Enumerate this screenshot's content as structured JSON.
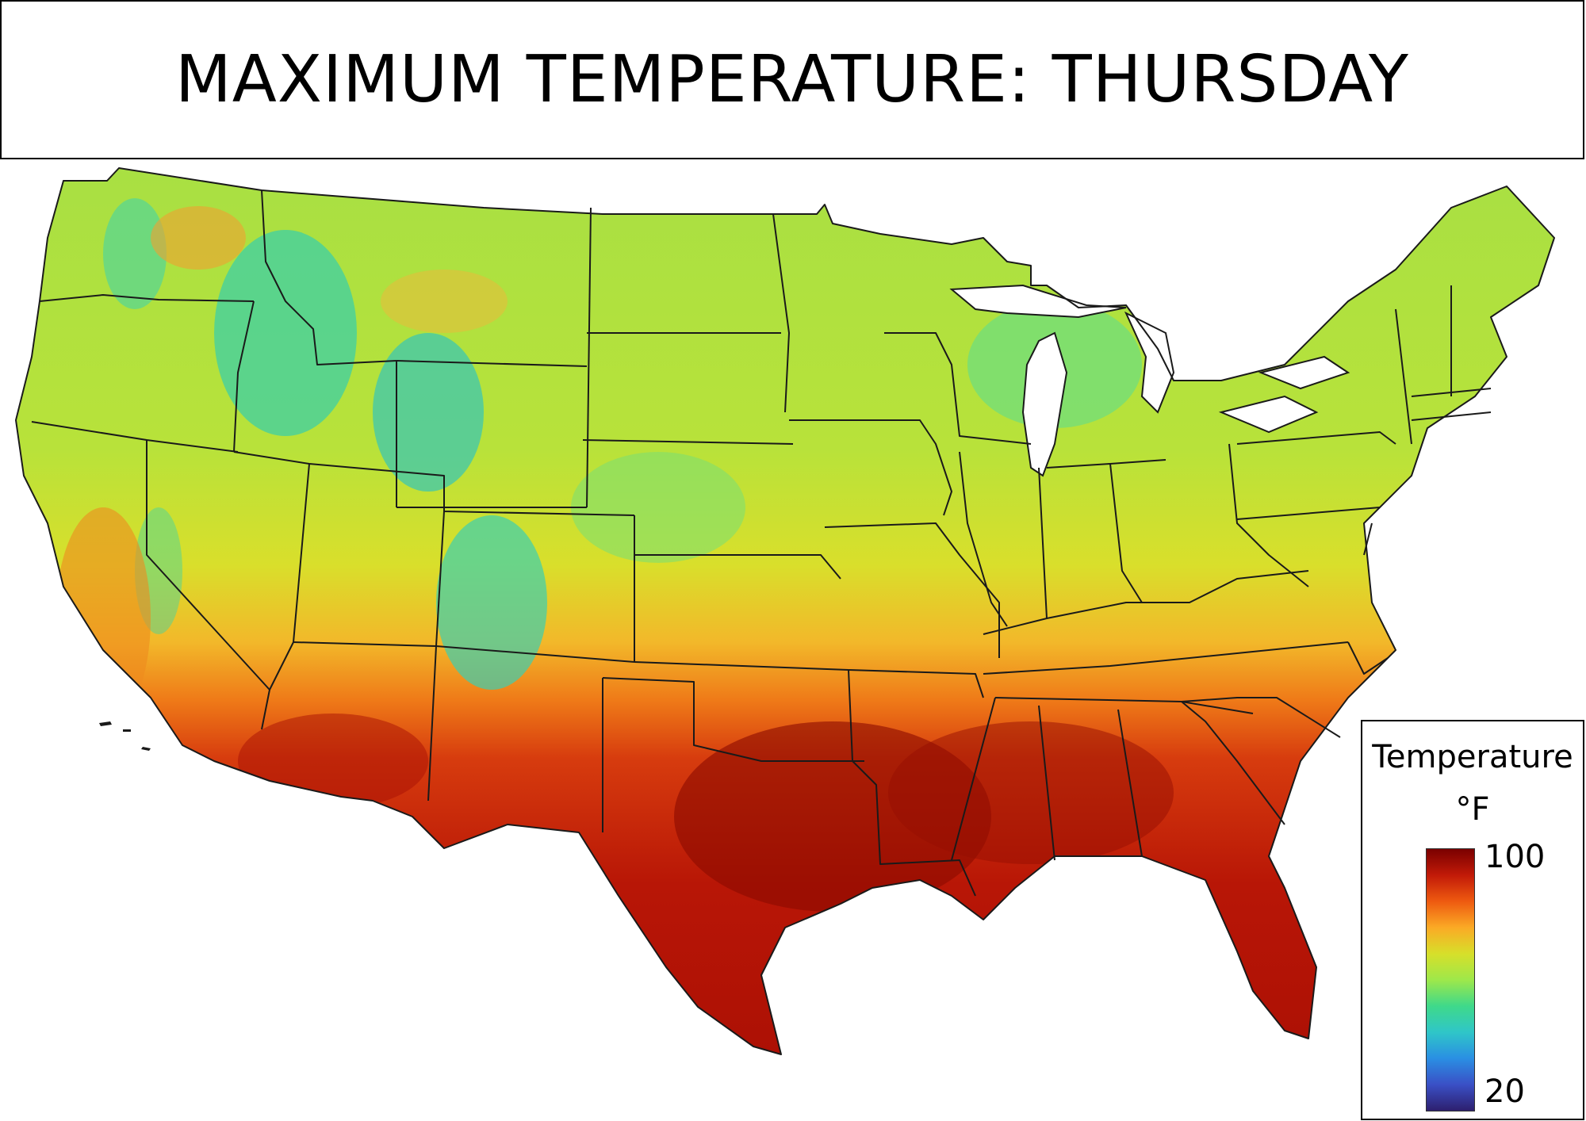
{
  "title": "MAXIMUM TEMPERATURE: THURSDAY",
  "legend": {
    "title": "Temperature",
    "unit": "°F",
    "max_label": "100",
    "min_label": "20",
    "colorscale": [
      "#7a0000",
      "#c21a08",
      "#ee5a10",
      "#fbaa25",
      "#d7df2a",
      "#9ee84a",
      "#3fd98a",
      "#2fc6c8",
      "#2a8fe3",
      "#3a50c6",
      "#2d1f6e"
    ]
  },
  "map": {
    "region": "contiguous-united-states",
    "variable": "maximum-temperature",
    "boundaries": "state-lines",
    "colors": {
      "hottest": "#8a0a00",
      "hot": "#d42a0a",
      "warm": "#f08a1c",
      "mild": "#d7df2a",
      "cool": "#9ee84a",
      "cold": "#2fc6c8",
      "outline": "#1a1a1a"
    }
  }
}
